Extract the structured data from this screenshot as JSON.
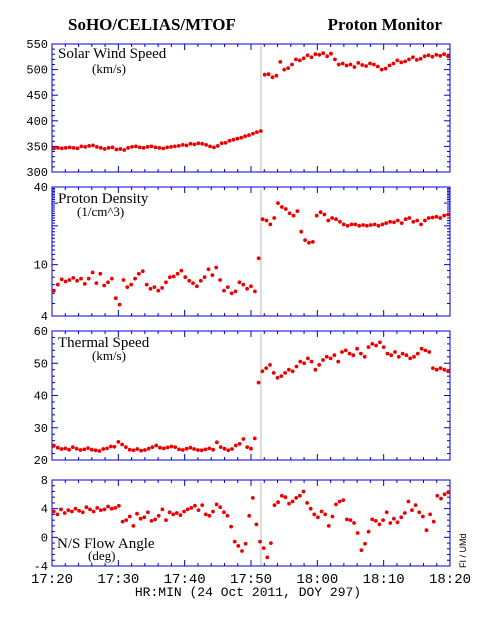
{
  "header": {
    "left": "SoHO/CELIAS/MTOF",
    "right": "Proton Monitor"
  },
  "credit": "FI / UMd",
  "colors": {
    "frame": "#0000cc",
    "points": "#ee0000",
    "gap_line": "#bbbbbb",
    "text": "#000000"
  },
  "chart_data": {
    "type": "scatter",
    "xlabel": "HR:MIN (24 Oct 2011, DOY 297)",
    "xlim": [
      0,
      60
    ],
    "x_axis_start": "17:20",
    "x_ticks": [
      {
        "value": 0,
        "label": "17:20"
      },
      {
        "value": 10,
        "label": "17:30"
      },
      {
        "value": 20,
        "label": "17:40"
      },
      {
        "value": 30,
        "label": "17:50"
      },
      {
        "value": 40,
        "label": "18:00"
      },
      {
        "value": 50,
        "label": "18:10"
      },
      {
        "value": 60,
        "label": "18:20"
      }
    ],
    "shock_time_min": 31.5,
    "panels": [
      {
        "id": "speed",
        "title": "Solar Wind Speed",
        "unit": "(km/s)",
        "scale": "linear",
        "ylim": [
          300,
          550
        ],
        "y_ticks": [
          {
            "value": 300,
            "label": "300"
          },
          {
            "value": 350,
            "label": "350"
          },
          {
            "value": 400,
            "label": "400"
          },
          {
            "value": 450,
            "label": "450"
          },
          {
            "value": 500,
            "label": "500"
          },
          {
            "value": 550,
            "label": "550"
          }
        ],
        "values": [
          346,
          347,
          346,
          347,
          348,
          347,
          346,
          350,
          349,
          351,
          352,
          349,
          347,
          345,
          347,
          348,
          344,
          345,
          343,
          347,
          349,
          350,
          348,
          347,
          349,
          350,
          348,
          347,
          346,
          348,
          349,
          350,
          351,
          353,
          352,
          355,
          354,
          356,
          355,
          353,
          350,
          348,
          351,
          356,
          357,
          361,
          363,
          365,
          367,
          370,
          372,
          375,
          378,
          380,
          490,
          491,
          485,
          488,
          515,
          500,
          503,
          510,
          520,
          518,
          522,
          528,
          524,
          530,
          529,
          532,
          526,
          531,
          520,
          510,
          512,
          508,
          510,
          505,
          513,
          509,
          507,
          512,
          510,
          506,
          500,
          502,
          508,
          512,
          518,
          514,
          516,
          520,
          524,
          519,
          521,
          526,
          528,
          525,
          529,
          527,
          530,
          526
        ]
      },
      {
        "id": "density",
        "title": "Proton Density",
        "unit": "(1/cm^3)",
        "scale": "log",
        "ylim": [
          4,
          40
        ],
        "y_ticks": [
          {
            "value": 4,
            "label": "4"
          },
          {
            "value": 10,
            "label": "10"
          },
          {
            "value": 40,
            "label": "40"
          }
        ],
        "values": [
          6.3,
          7.0,
          7.7,
          7.4,
          7.6,
          7.9,
          7.5,
          7.8,
          7.1,
          7.8,
          8.7,
          7.2,
          8.5,
          6.9,
          7.3,
          7.8,
          5.5,
          4.9,
          7.6,
          6.7,
          7.0,
          7.8,
          8.5,
          8.9,
          7.0,
          6.5,
          6.7,
          6.3,
          6.6,
          7.3,
          8.0,
          8.1,
          8.5,
          9.0,
          8.0,
          7.5,
          7.2,
          6.8,
          7.5,
          8.0,
          9.2,
          8.3,
          9.5,
          7.6,
          6.3,
          6.7,
          6.0,
          6.2,
          7.3,
          7.0,
          6.5,
          6.8,
          6.2,
          11.2,
          22.5,
          22.0,
          20.5,
          23.0,
          30.0,
          28.0,
          27.0,
          25.0,
          24.0,
          26.0,
          18.0,
          15.5,
          14.8,
          15.0,
          24.0,
          25.5,
          24.5,
          22.0,
          23.0,
          22.5,
          21.5,
          20.5,
          20.0,
          20.5,
          20.5,
          20.0,
          20.3,
          20.0,
          20.3,
          20.5,
          20.0,
          20.5,
          21.0,
          21.5,
          21.3,
          22.0,
          21.0,
          22.5,
          23.0,
          21.5,
          22.0,
          20.5,
          22.0,
          23.0,
          23.2,
          23.5,
          23.0,
          24.0,
          24.5
        ]
      },
      {
        "id": "thermal",
        "title": "Thermal Speed",
        "unit": "(km/s)",
        "scale": "linear",
        "ylim": [
          20,
          60
        ],
        "y_ticks": [
          {
            "value": 20,
            "label": "20"
          },
          {
            "value": 30,
            "label": "30"
          },
          {
            "value": 40,
            "label": "40"
          },
          {
            "value": 50,
            "label": "50"
          },
          {
            "value": 60,
            "label": "60"
          }
        ],
        "values": [
          24.5,
          23.8,
          23.4,
          23.6,
          23.2,
          24.0,
          23.5,
          23.1,
          23.3,
          23.7,
          23.2,
          23.0,
          22.8,
          23.4,
          23.6,
          24.2,
          24.1,
          25.6,
          24.8,
          24.0,
          23.2,
          23.0,
          23.4,
          22.9,
          23.1,
          23.5,
          24.0,
          24.5,
          23.8,
          23.6,
          23.9,
          24.2,
          24.0,
          23.3,
          23.1,
          23.5,
          23.8,
          23.4,
          23.1,
          23.0,
          23.3,
          23.6,
          23.2,
          25.5,
          24.0,
          23.5,
          23.0,
          23.4,
          24.5,
          25.0,
          26.5,
          24.0,
          23.5,
          26.7,
          44.0,
          47.5,
          48.5,
          49.5,
          47.0,
          45.5,
          46.0,
          47.0,
          48.0,
          47.5,
          49.0,
          50.5,
          50.0,
          51.5,
          50.5,
          48.0,
          49.5,
          51.0,
          52.0,
          51.5,
          52.5,
          50.5,
          53.5,
          54.0,
          53.0,
          52.5,
          54.5,
          53.0,
          52.0,
          55.0,
          56.0,
          55.5,
          56.5,
          55.0,
          53.0,
          52.5,
          53.5,
          52.0,
          53.0,
          52.5,
          51.5,
          52.0,
          53.0,
          54.5,
          54.0,
          53.5,
          48.5,
          48.0,
          48.5,
          48.0,
          47.5
        ]
      },
      {
        "id": "ns_flow",
        "title": "N/S Flow Angle",
        "unit": "(deg)",
        "scale": "linear",
        "ylim": [
          -4,
          8
        ],
        "y_ticks": [
          {
            "value": -4,
            "label": "-4"
          },
          {
            "value": 0,
            "label": "0"
          },
          {
            "value": 4,
            "label": "4"
          },
          {
            "value": 8,
            "label": "8"
          }
        ],
        "values": [
          3.6,
          3.2,
          3.9,
          3.4,
          3.8,
          3.6,
          4.0,
          3.7,
          3.5,
          4.2,
          3.9,
          3.6,
          4.1,
          3.8,
          3.9,
          4.3,
          4.0,
          4.1,
          4.4,
          2.2,
          2.4,
          2.9,
          1.6,
          3.3,
          2.6,
          2.8,
          3.5,
          2.3,
          2.5,
          3.0,
          3.9,
          2.4,
          3.5,
          3.2,
          3.4,
          3.1,
          3.6,
          3.9,
          4.1,
          4.4,
          3.8,
          4.5,
          3.2,
          3.0,
          3.6,
          4.6,
          4.2,
          3.5,
          3.0,
          1.5,
          -0.6,
          -1.2,
          -1.9,
          -0.9,
          3.0,
          5.5,
          1.8,
          -0.6,
          -1.5,
          -2.8,
          -0.8,
          4.5,
          4.9,
          5.8,
          5.6,
          4.7,
          5.0,
          5.5,
          5.8,
          6.4,
          4.8,
          4.0,
          3.2,
          2.8,
          3.6,
          3.2,
          1.6,
          2.9,
          4.6,
          5.0,
          5.2,
          2.5,
          2.4,
          2.0,
          0.6,
          -1.8,
          -0.9,
          0.8,
          2.5,
          2.3,
          1.8,
          2.4,
          3.5,
          2.0,
          2.6,
          2.1,
          2.8,
          3.4,
          5.0,
          3.8,
          4.5,
          3.5,
          2.9,
          1.0,
          3.2,
          2.2,
          5.8,
          5.4,
          6.0,
          6.3
        ]
      }
    ]
  }
}
